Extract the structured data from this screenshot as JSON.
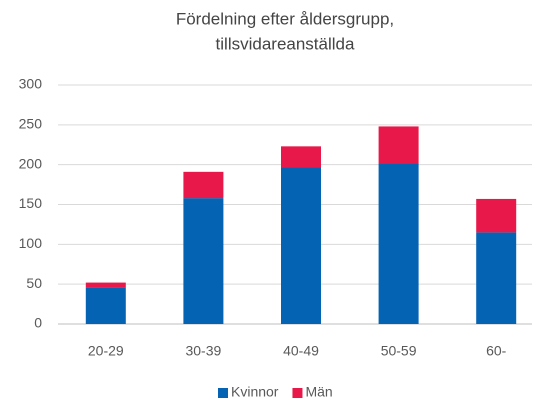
{
  "chart_data": {
    "type": "stacked_bar",
    "title": [
      "Fördelning efter åldersgrupp,",
      "tillsvidareanställda"
    ],
    "categories": [
      "20-29",
      "30-39",
      "40-49",
      "50-59",
      "60-"
    ],
    "series": [
      {
        "name": "Kvinnor",
        "color": "#0563b4",
        "values": [
          46,
          158,
          197,
          202,
          115
        ]
      },
      {
        "name": "Män",
        "color": "#e8194a",
        "values": [
          6,
          33,
          26,
          46,
          42
        ]
      }
    ],
    "ylim": [
      0,
      300
    ],
    "yticks": [
      0,
      50,
      100,
      150,
      200,
      250,
      300
    ],
    "grid": true,
    "legend": "bottom"
  }
}
